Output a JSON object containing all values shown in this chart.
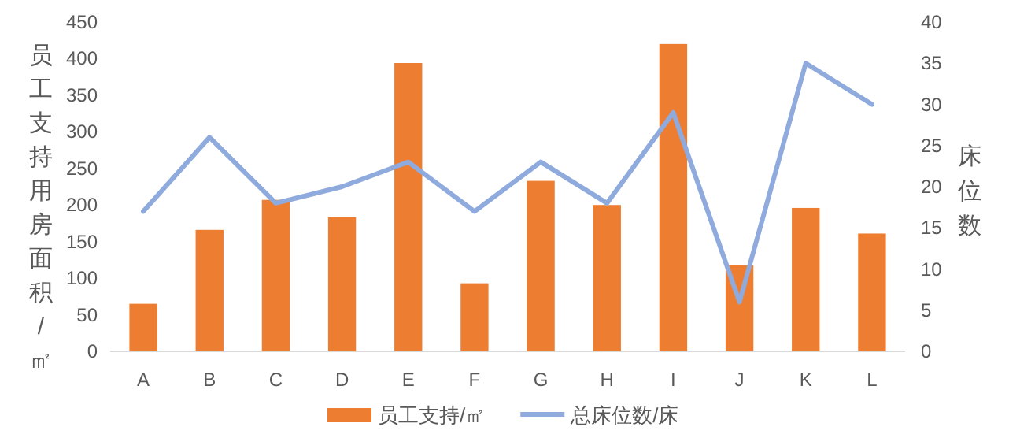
{
  "chart_data": {
    "type": "bar",
    "categories": [
      "A",
      "B",
      "C",
      "D",
      "E",
      "F",
      "G",
      "H",
      "I",
      "J",
      "K",
      "L"
    ],
    "ylabel": "员工支持用房面积/㎡",
    "y2label": "床位数",
    "ylim": [
      0,
      450
    ],
    "yticks": [
      0,
      50,
      100,
      150,
      200,
      250,
      300,
      350,
      400,
      450
    ],
    "y2lim": [
      0,
      40
    ],
    "y2ticks": [
      0,
      5,
      10,
      15,
      20,
      25,
      30,
      35,
      40
    ],
    "legend": "bottom",
    "grid": false,
    "series": [
      {
        "name": "员工支持/㎡",
        "color": "#ed7d31",
        "values": [
          65,
          166,
          207,
          183,
          394,
          93,
          233,
          200,
          420,
          118,
          196,
          161
        ]
      },
      {
        "name": "总床位数/床",
        "type": "line",
        "axis": "y2",
        "color": "#8faadc",
        "values": [
          17,
          26,
          18,
          20,
          23,
          17,
          23,
          18,
          29,
          6,
          35,
          30
        ]
      }
    ]
  }
}
